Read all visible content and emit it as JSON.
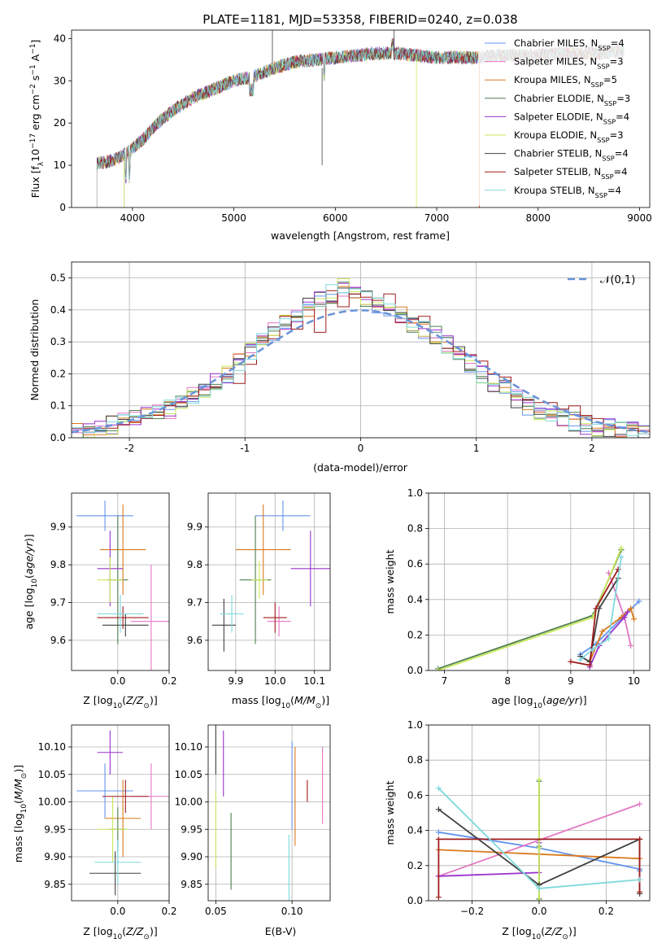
{
  "figure": {
    "title": "PLATE=1181, MJD=53358, FIBERID=0240, z=0.038"
  },
  "legend_labels": [
    "Chabrier MILES, N_SSP=4",
    "Salpeter MILES, N_SSP=3",
    "Kroupa MILES, N_SSP=5",
    "Chabrier ELODIE, N_SSP=3",
    "Salpeter ELODIE, N_SSP=4",
    "Kroupa ELODIE, N_SSP=3",
    "Chabrier STELIB, N_SSP=4",
    "Salpeter STELIB, N_SSP=4",
    "Kroupa STELIB, N_SSP=4"
  ],
  "colors": [
    "#6495ed",
    "#e377c2",
    "#d97a1e",
    "#4f7f4f",
    "#9a32cd",
    "#c8e85a",
    "#404040",
    "#a01c1c",
    "#7fd9de"
  ],
  "chart_data": [
    {
      "type": "line",
      "title": "PLATE=1181, MJD=53358, FIBERID=0240, z=0.038",
      "xlabel": "wavelength [Angstrom, rest frame]",
      "ylabel": "Flux [f_λ 10^-17 erg cm^-2 s^-1 A^-1]",
      "xlim": [
        3400,
        9100
      ],
      "ylim": [
        0,
        42
      ],
      "xticks": [
        4000,
        5000,
        6000,
        7000,
        8000,
        9000
      ],
      "yticks": [
        0,
        10,
        20,
        30,
        40
      ],
      "grid": false,
      "legend_placement": "right",
      "x": [
        3650,
        3800,
        3950,
        4100,
        4250,
        4400,
        4600,
        4800,
        5000,
        5200,
        5400,
        5600,
        5800,
        6000,
        6200,
        6400,
        6600,
        6800,
        7000,
        7200,
        7400,
        7600,
        7800,
        8000,
        8200,
        8400,
        8600,
        8800
      ],
      "series": [
        {
          "name": "Chabrier MILES, N_SSP=4",
          "values": [
            10.5,
            11,
            13,
            16,
            20,
            23,
            26,
            28,
            30,
            31,
            33,
            34.5,
            35,
            35.5,
            36,
            36.5,
            36.5,
            36,
            35.5,
            35.5,
            35.5,
            36,
            36,
            36,
            36.5,
            36.5,
            36.5,
            37
          ]
        },
        {
          "name": "Kroupa STELIB, N_SSP=4",
          "values": [
            11,
            11.5,
            13.5,
            16.5,
            20.5,
            23.5,
            26.5,
            28.5,
            30.5,
            31.5,
            33.5,
            35,
            35.5,
            36,
            36.5,
            37,
            37,
            36.5,
            36,
            36,
            36,
            36.5,
            36.5,
            36.5,
            37,
            37,
            37,
            37.5
          ]
        }
      ]
    },
    {
      "type": "bar",
      "title": "",
      "xlabel": "(data-model)/error",
      "ylabel": "Normed distribution",
      "xlim": [
        -2.5,
        2.5
      ],
      "ylim": [
        0,
        0.55
      ],
      "xticks": [
        -2,
        -1,
        0,
        1,
        2
      ],
      "yticks": [
        0.0,
        0.1,
        0.2,
        0.3,
        0.4,
        0.5
      ],
      "grid": true,
      "legend_placement": "top-right",
      "legend": [
        "𝒩(0,1)"
      ],
      "bin_edges": [
        -2.5,
        -2.4,
        -2.3,
        -2.2,
        -2.1,
        -2.0,
        -1.9,
        -1.8,
        -1.7,
        -1.6,
        -1.5,
        -1.4,
        -1.3,
        -1.2,
        -1.1,
        -1.0,
        -0.9,
        -0.8,
        -0.7,
        -0.6,
        -0.5,
        -0.4,
        -0.3,
        -0.2,
        -0.1,
        0.0,
        0.1,
        0.2,
        0.3,
        0.4,
        0.5,
        0.6,
        0.7,
        0.8,
        0.9,
        1.0,
        1.1,
        1.2,
        1.3,
        1.4,
        1.5,
        1.6,
        1.7,
        1.8,
        1.9,
        2.0,
        2.1,
        2.2,
        2.3,
        2.4,
        2.5
      ],
      "series": [
        {
          "name": "Chabrier MILES, N_SSP=4",
          "values": [
            0.02,
            0.03,
            0.03,
            0.04,
            0.05,
            0.06,
            0.07,
            0.08,
            0.09,
            0.11,
            0.13,
            0.15,
            0.18,
            0.2,
            0.24,
            0.27,
            0.3,
            0.33,
            0.36,
            0.38,
            0.41,
            0.44,
            0.45,
            0.47,
            0.45,
            0.44,
            0.42,
            0.4,
            0.38,
            0.36,
            0.34,
            0.32,
            0.29,
            0.26,
            0.23,
            0.2,
            0.17,
            0.15,
            0.12,
            0.1,
            0.08,
            0.07,
            0.06,
            0.05,
            0.04,
            0.03,
            0.03,
            0.02,
            0.02,
            0.02
          ]
        },
        {
          "name": "Salpeter STELIB, N_SSP=4",
          "values": [
            0.03,
            0.03,
            0.03,
            0.03,
            0.04,
            0.05,
            0.06,
            0.07,
            0.1,
            0.11,
            0.13,
            0.15,
            0.16,
            0.19,
            0.17,
            0.23,
            0.3,
            0.31,
            0.38,
            0.34,
            0.4,
            0.33,
            0.46,
            0.41,
            0.45,
            0.44,
            0.43,
            0.45,
            0.36,
            0.37,
            0.38,
            0.33,
            0.28,
            0.27,
            0.26,
            0.24,
            0.2,
            0.19,
            0.13,
            0.12,
            0.11,
            0.11,
            0.09,
            0.1,
            0.07,
            0.06,
            0.04,
            0.03,
            0.03,
            0.02
          ]
        }
      ],
      "normal_curve": {
        "name": "𝒩(0,1)",
        "mean": 0,
        "sigma": 1
      }
    },
    {
      "type": "scatter",
      "xlabel": "Z [log10(Z/Z⊙)]",
      "ylabel": "age  [log10(age/yr)]",
      "xlim": [
        -0.18,
        0.2
      ],
      "ylim": [
        9.52,
        9.99
      ],
      "xticks": [
        0.0,
        0.2
      ],
      "xtick_labels": [
        "0.0",
        "0.2"
      ],
      "yticks": [
        9.6,
        9.7,
        9.8,
        9.9
      ],
      "grid": true,
      "points": [
        {
          "x": -0.05,
          "y": 9.93,
          "xerr": 0.11,
          "yerr": 0.04
        },
        {
          "x": 0.13,
          "y": 9.65,
          "xerr": 0.08,
          "yerr": 0.15
        },
        {
          "x": 0.02,
          "y": 9.84,
          "xerr": 0.09,
          "yerr": 0.12
        },
        {
          "x": 0.0,
          "y": 9.76,
          "xerr": 0.04,
          "yerr": 0.17
        },
        {
          "x": -0.03,
          "y": 9.79,
          "xerr": 0.05,
          "yerr": 0.1
        },
        {
          "x": -0.03,
          "y": 9.76,
          "xerr": 0.05,
          "yerr": 0.06
        },
        {
          "x": 0.03,
          "y": 9.64,
          "xerr": 0.09,
          "yerr": 0.03
        },
        {
          "x": 0.02,
          "y": 9.66,
          "xerr": 0.1,
          "yerr": 0.03
        },
        {
          "x": 0.01,
          "y": 9.67,
          "xerr": 0.09,
          "yerr": 0.05
        }
      ]
    },
    {
      "type": "scatter",
      "xlabel": "mass [log10(M/M⊙)]",
      "ylabel": "",
      "xlim": [
        9.83,
        10.14
      ],
      "ylim": [
        9.52,
        9.99
      ],
      "xticks": [
        9.9,
        10.0,
        10.1
      ],
      "xtick_labels": [
        "9.9",
        "10.0",
        "10.1"
      ],
      "yticks": [
        9.6,
        9.7,
        9.8,
        9.9
      ],
      "grid": true,
      "points": [
        {
          "x": 10.02,
          "y": 9.93,
          "xerr": 0.07,
          "yerr": 0.04
        },
        {
          "x": 10.01,
          "y": 9.65,
          "xerr": 0.03,
          "yerr": 0.04
        },
        {
          "x": 9.97,
          "y": 9.84,
          "xerr": 0.07,
          "yerr": 0.12
        },
        {
          "x": 9.95,
          "y": 9.76,
          "xerr": 0.04,
          "yerr": 0.17
        },
        {
          "x": 10.09,
          "y": 9.79,
          "xerr": 0.05,
          "yerr": 0.1
        },
        {
          "x": 9.96,
          "y": 9.76,
          "xerr": 0.02,
          "yerr": 0.05
        },
        {
          "x": 9.87,
          "y": 9.64,
          "xerr": 0.03,
          "yerr": 0.07
        },
        {
          "x": 10.0,
          "y": 9.66,
          "xerr": 0.03,
          "yerr": 0.04
        },
        {
          "x": 9.89,
          "y": 9.67,
          "xerr": 0.03,
          "yerr": 0.05
        }
      ]
    },
    {
      "type": "line",
      "xlabel": "age  [log10(age/yr)]",
      "ylabel": "mass weight",
      "xlim": [
        6.75,
        10.25
      ],
      "ylim": [
        0,
        1.0
      ],
      "xticks": [
        7,
        8,
        9,
        10
      ],
      "yticks": [
        0.0,
        0.2,
        0.4,
        0.6,
        0.8,
        1.0
      ],
      "grid": true,
      "series": [
        {
          "name": "Chabrier MILES, N_SSP=4",
          "x": [
            9.15,
            9.4,
            9.85,
            10.08
          ],
          "y": [
            0.09,
            0.15,
            0.31,
            0.39
          ]
        },
        {
          "name": "Salpeter MILES, N_SSP=3",
          "x": [
            9.6,
            9.85,
            9.95
          ],
          "y": [
            0.55,
            0.3,
            0.14
          ]
        },
        {
          "name": "Kroupa MILES, N_SSP=5",
          "x": [
            9.3,
            9.5,
            9.8,
            9.95,
            10.0
          ],
          "y": [
            0.05,
            0.22,
            0.3,
            0.35,
            0.29
          ]
        },
        {
          "name": "Chabrier ELODIE, N_SSP=3",
          "x": [
            6.9,
            9.35,
            9.8
          ],
          "y": [
            0.01,
            0.31,
            0.68
          ]
        },
        {
          "name": "Salpeter ELODIE, N_SSP=4",
          "x": [
            9.3,
            9.45,
            9.85,
            9.9
          ],
          "y": [
            0.02,
            0.14,
            0.3,
            0.33
          ]
        },
        {
          "name": "Kroupa ELODIE, N_SSP=3",
          "x": [
            6.9,
            9.35,
            9.8
          ],
          "y": [
            0.0,
            0.3,
            0.69
          ]
        },
        {
          "name": "Chabrier STELIB, N_SSP=4",
          "x": [
            9.15,
            9.3,
            9.45,
            9.75
          ],
          "y": [
            0.08,
            0.05,
            0.35,
            0.52
          ]
        },
        {
          "name": "Salpeter STELIB, N_SSP=4",
          "x": [
            9.0,
            9.3,
            9.4,
            9.75
          ],
          "y": [
            0.05,
            0.03,
            0.35,
            0.57
          ]
        },
        {
          "name": "Kroupa STELIB, N_SSP=4",
          "x": [
            9.15,
            9.35,
            9.6,
            9.8
          ],
          "y": [
            0.06,
            0.12,
            0.18,
            0.64
          ]
        }
      ]
    },
    {
      "type": "scatter",
      "xlabel": "Z [log10(Z/Z⊙)]",
      "ylabel": "mass [log10(M/M⊙)]",
      "xlim": [
        -0.18,
        0.2
      ],
      "ylim": [
        9.82,
        10.14
      ],
      "xticks": [
        0.0,
        0.2
      ],
      "xtick_labels": [
        "0.0",
        "0.2"
      ],
      "yticks": [
        9.85,
        9.9,
        9.95,
        10.0,
        10.05,
        10.1
      ],
      "grid": true,
      "points": [
        {
          "x": -0.05,
          "y": 10.02,
          "xerr": 0.11,
          "yerr": 0.05
        },
        {
          "x": 0.13,
          "y": 10.01,
          "xerr": 0.08,
          "yerr": 0.06
        },
        {
          "x": 0.02,
          "y": 9.97,
          "xerr": 0.07,
          "yerr": 0.07
        },
        {
          "x": 0.0,
          "y": 9.95,
          "xerr": 0.03,
          "yerr": 0.04
        },
        {
          "x": -0.03,
          "y": 10.09,
          "xerr": 0.05,
          "yerr": 0.04
        },
        {
          "x": -0.02,
          "y": 9.95,
          "xerr": 0.06,
          "yerr": 0.06
        },
        {
          "x": -0.01,
          "y": 9.87,
          "xerr": 0.1,
          "yerr": 0.04
        },
        {
          "x": 0.03,
          "y": 10.01,
          "xerr": 0.09,
          "yerr": 0.03
        },
        {
          "x": 0.0,
          "y": 9.89,
          "xerr": 0.09,
          "yerr": 0.04
        }
      ]
    },
    {
      "type": "scatter",
      "xlabel": "E(B-V)",
      "ylabel": "",
      "xlim": [
        0.045,
        0.125
      ],
      "ylim": [
        9.82,
        10.14
      ],
      "xticks": [
        0.05,
        0.1
      ],
      "xtick_labels": [
        "0.05",
        "0.10"
      ],
      "yticks": [
        9.85,
        9.9,
        9.95,
        10.0,
        10.05,
        10.1
      ],
      "grid": true,
      "points": [
        {
          "x": 0.1,
          "y": 10.03,
          "xerr": 0.0,
          "yerr": 0.08
        },
        {
          "x": 0.12,
          "y": 10.03,
          "xerr": 0.0,
          "yerr": 0.07
        },
        {
          "x": 0.102,
          "y": 10.01,
          "xerr": 0.0,
          "yerr": 0.09
        },
        {
          "x": 0.06,
          "y": 9.91,
          "xerr": 0.0,
          "yerr": 0.07
        },
        {
          "x": 0.055,
          "y": 10.07,
          "xerr": 0.0,
          "yerr": 0.06
        },
        {
          "x": 0.05,
          "y": 9.95,
          "xerr": 0.0,
          "yerr": 0.07
        },
        {
          "x": 0.05,
          "y": 10.1,
          "xerr": 0.0,
          "yerr": 0.05
        },
        {
          "x": 0.11,
          "y": 10.02,
          "xerr": 0.0,
          "yerr": 0.02
        },
        {
          "x": 0.098,
          "y": 9.88,
          "xerr": 0.0,
          "yerr": 0.06
        }
      ]
    },
    {
      "type": "line",
      "xlabel": "Z [log10(Z/Z⊙)]",
      "ylabel": "mass weight",
      "xlim": [
        -0.33,
        0.33
      ],
      "ylim": [
        0,
        1.0
      ],
      "xticks": [
        -0.2,
        0.0,
        0.2
      ],
      "xtick_labels": [
        "−0.2",
        "0.0",
        "0.2"
      ],
      "yticks": [
        0.0,
        0.2,
        0.4,
        0.6,
        0.8,
        1.0
      ],
      "grid": true,
      "series": [
        {
          "name": "Chabrier MILES, N_SSP=4",
          "x": [
            -0.3,
            0.0,
            0.3,
            0.3
          ],
          "y": [
            0.39,
            0.3,
            0.18,
            0.17
          ]
        },
        {
          "name": "Salpeter MILES, N_SSP=3",
          "x": [
            -0.3,
            0.3
          ],
          "y": [
            0.14,
            0.55
          ]
        },
        {
          "name": "Kroupa MILES, N_SSP=5",
          "x": [
            -0.3,
            0.3
          ],
          "y": [
            0.29,
            0.24
          ]
        },
        {
          "name": "Chabrier ELODIE, N_SSP=3",
          "x": [
            0.0,
            0.0,
            0.0
          ],
          "y": [
            0.31,
            0.68,
            0.01
          ]
        },
        {
          "name": "Salpeter ELODIE, N_SSP=4",
          "x": [
            -0.3,
            0.0,
            0.0
          ],
          "y": [
            0.14,
            0.16,
            0.33
          ]
        },
        {
          "name": "Kroupa ELODIE, N_SSP=3",
          "x": [
            0.0,
            0.0,
            0.0
          ],
          "y": [
            0.69,
            0.3,
            0.0
          ]
        },
        {
          "name": "Chabrier STELIB, N_SSP=4",
          "x": [
            -0.3,
            0.0,
            0.3,
            0.3
          ],
          "y": [
            0.52,
            0.09,
            0.35,
            0.04
          ]
        },
        {
          "name": "Salpeter STELIB, N_SSP=4",
          "x": [
            -0.3,
            -0.3,
            0.3,
            0.3
          ],
          "y": [
            0.02,
            0.35,
            0.35,
            0.05
          ]
        },
        {
          "name": "Kroupa STELIB, N_SSP=4",
          "x": [
            -0.3,
            0.0,
            0.3
          ],
          "y": [
            0.64,
            0.07,
            0.12
          ]
        }
      ]
    }
  ]
}
